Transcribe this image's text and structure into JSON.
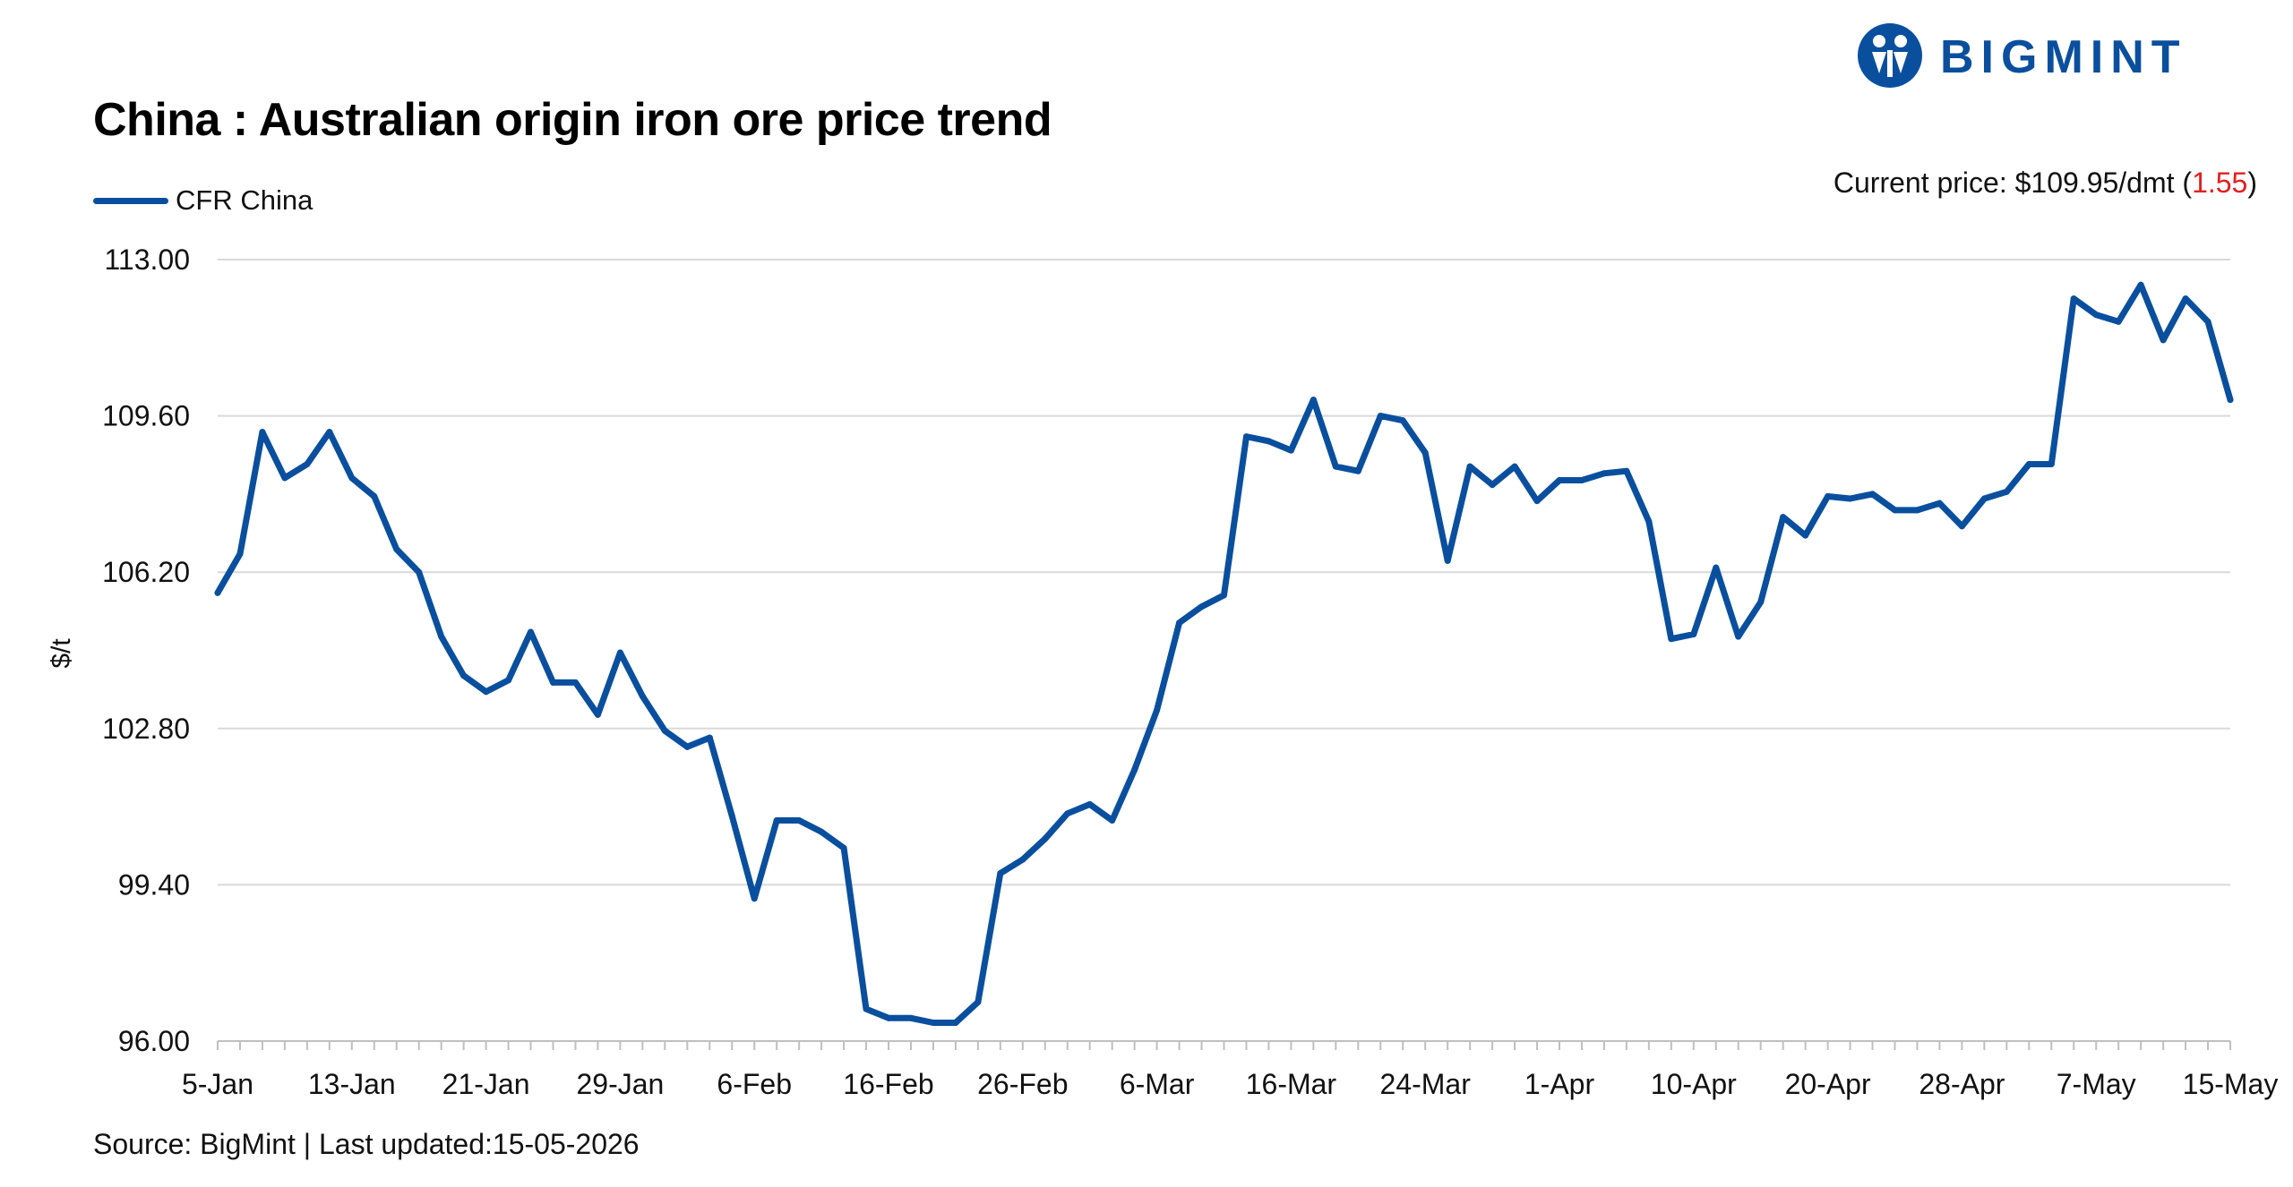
{
  "header": {
    "title": "China : Australian origin iron ore price trend",
    "logo_text": "BIGMINT"
  },
  "current_price": {
    "prefix": "Current price: $109.95/dmt (",
    "change": "1.55",
    "suffix": ")"
  },
  "footer": {
    "source": "Source: BigMint | Last updated:15-05-2026"
  },
  "colors": {
    "series": "#0a4f9e",
    "change": "#e02020",
    "grid": "#d9d9d9",
    "brand": "#0a4f9e"
  },
  "chart_data": {
    "type": "line",
    "title": "China : Australian origin iron ore price trend",
    "xlabel": "",
    "ylabel": "$/t",
    "ylim": [
      96.0,
      113.0
    ],
    "yticks": [
      "96.00",
      "99.40",
      "102.80",
      "106.20",
      "109.60",
      "113.00"
    ],
    "xticks": [
      "5-Jan",
      "13-Jan",
      "21-Jan",
      "29-Jan",
      "6-Feb",
      "16-Feb",
      "26-Feb",
      "6-Mar",
      "16-Mar",
      "24-Mar",
      "1-Apr",
      "10-Apr",
      "20-Apr",
      "28-Apr",
      "7-May",
      "15-May"
    ],
    "grid": true,
    "legend": "top-left",
    "series": [
      {
        "name": "CFR China",
        "values": [
          105.75,
          106.6,
          109.25,
          108.25,
          108.55,
          109.25,
          108.25,
          107.85,
          106.7,
          106.2,
          104.8,
          103.95,
          103.6,
          103.85,
          104.9,
          103.8,
          103.8,
          103.1,
          104.45,
          103.5,
          102.75,
          102.4,
          102.6,
          100.9,
          99.1,
          100.8,
          100.8,
          100.55,
          100.2,
          96.7,
          96.5,
          96.5,
          96.4,
          96.4,
          96.85,
          99.65,
          99.95,
          100.4,
          100.95,
          101.15,
          100.8,
          101.9,
          103.2,
          105.1,
          105.45,
          105.7,
          109.15,
          109.05,
          108.85,
          109.95,
          108.5,
          108.4,
          109.6,
          109.5,
          108.8,
          106.45,
          108.5,
          108.1,
          108.5,
          107.75,
          108.2,
          108.2,
          108.35,
          108.4,
          107.3,
          104.75,
          104.85,
          106.3,
          104.8,
          105.55,
          107.4,
          107.0,
          107.85,
          107.8,
          107.9,
          107.55,
          107.55,
          107.7,
          107.2,
          107.8,
          107.95,
          108.55,
          108.55,
          112.15,
          111.8,
          111.65,
          112.45,
          111.25,
          112.15,
          111.65,
          109.95
        ]
      }
    ]
  }
}
